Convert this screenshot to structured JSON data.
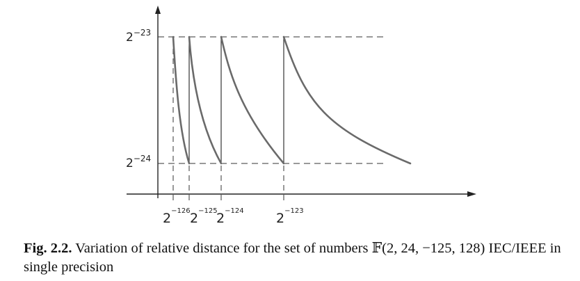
{
  "figure": {
    "y_ticks": [
      {
        "base": "2",
        "exp": "−23",
        "value": -23
      },
      {
        "base": "2",
        "exp": "−24",
        "value": -24
      }
    ],
    "x_ticks": [
      {
        "base": "2",
        "exp": "−126",
        "value": -126
      },
      {
        "base": "2",
        "exp": "−125",
        "value": -125
      },
      {
        "base": "2",
        "exp": "−124",
        "value": -124
      },
      {
        "base": "2",
        "exp": "−123",
        "value": -123
      }
    ]
  },
  "caption": {
    "label": "Fig. 2.2.",
    "text_before": " Variation of relative distance for the set of numbers ",
    "set_symbol": "𝔽",
    "set_args": "(2, 24, −125, 128)",
    "text_after": " IEC/IEEE in single precision"
  }
}
